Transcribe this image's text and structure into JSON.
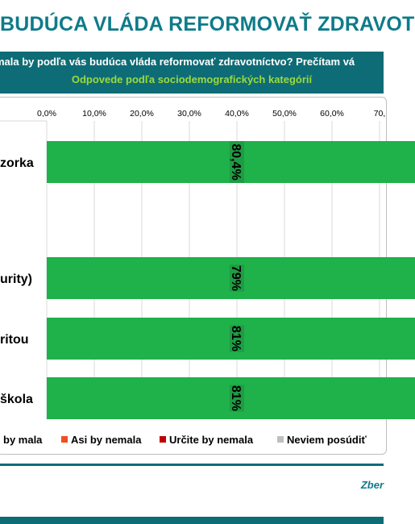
{
  "title": "BUDÚCA VLÁDA REFORMOVAŤ ZDRAVOT",
  "question": "mala by podľa vás budúca vláda reformovať zdravotníctvo? Prečítam vá",
  "subtitle": "Odpovede podľa sociodemografických kategórií",
  "source": "Zber",
  "colors": {
    "brand_teal": "#0e6c76",
    "bar_green": "#1fb14a",
    "label_bg": "#1e9c43",
    "asi_by_nemala": "#f04e23",
    "urcite_by_nemala": "#c00000",
    "neviem": "#bfbfbf"
  },
  "chart_data": {
    "type": "bar",
    "orientation": "horizontal",
    "stacked": true,
    "categories": [
      "zorka",
      "urity)",
      "ritou",
      "škola"
    ],
    "series": [
      {
        "name": "by mala",
        "values": [
          80.4,
          79,
          81,
          81
        ],
        "data_labels": [
          "80,4%",
          "79%",
          "81%",
          "81%"
        ]
      },
      {
        "name": "Asi by nemala",
        "values": [
          null,
          null,
          null,
          null
        ]
      },
      {
        "name": "Určite by nemala",
        "values": [
          null,
          null,
          null,
          null
        ]
      },
      {
        "name": "Neviem posúdiť",
        "values": [
          null,
          null,
          null,
          null
        ]
      }
    ],
    "xlim": [
      0,
      70
    ],
    "xticks": [
      "0,0%",
      "10,0%",
      "20,0%",
      "30,0%",
      "40,0%",
      "50,0%",
      "60,0%",
      "70,"
    ],
    "grid": true,
    "legend_position": "bottom"
  }
}
